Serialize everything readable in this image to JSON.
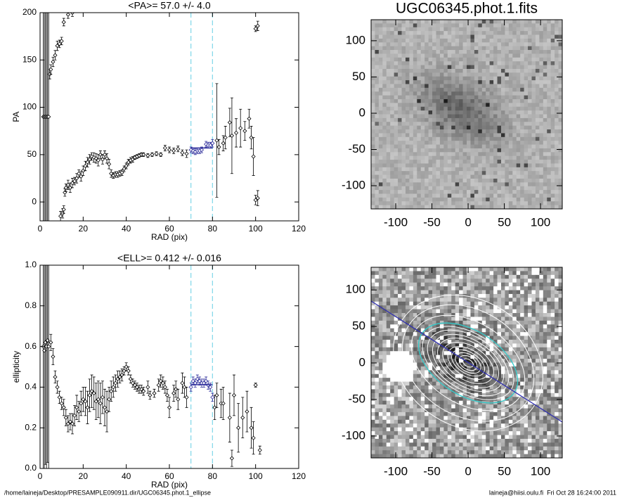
{
  "chart_data": [
    {
      "type": "errorbar",
      "title": "<PA>=  57.0 +/-   4.0",
      "x_label": "RAD (pix)",
      "y_label": "PA",
      "xlim": [
        0,
        120
      ],
      "ylim": [
        -20,
        200
      ],
      "xticks": [
        0,
        20,
        40,
        60,
        80,
        100,
        120
      ],
      "yticks": [
        0,
        50,
        100,
        150,
        200
      ],
      "markers_x": [
        70,
        80
      ],
      "markers_color": "#7fd8e8",
      "fit": {
        "x": [
          70,
          80
        ],
        "value": 57,
        "color": "#2b2b9a"
      },
      "series": [
        {
          "color": "#000000",
          "x": [
            1.5,
            2,
            2.5,
            3,
            3.5,
            4,
            4.5,
            5,
            6,
            7,
            8,
            9,
            10,
            11,
            13,
            15,
            9.5,
            10.5,
            11,
            11.5,
            12,
            13,
            14,
            15,
            16,
            17,
            18,
            19,
            20,
            21,
            22,
            23,
            24,
            25,
            26,
            27,
            28,
            29,
            30,
            31,
            32,
            33,
            34,
            35,
            36,
            37,
            38,
            39,
            40,
            41,
            42,
            43,
            44,
            45,
            46,
            47,
            48,
            50,
            52,
            54,
            56,
            58,
            60,
            62,
            64,
            66,
            68,
            82,
            83,
            85,
            86,
            88,
            89,
            91,
            93,
            95,
            97,
            98,
            99,
            100,
            101,
            100,
            101
          ],
          "values": [
            90,
            90,
            90,
            90,
            90,
            90,
            135,
            140,
            148,
            155,
            165,
            167,
            170,
            190,
            198,
            200,
            -15,
            -12,
            -8,
            10,
            15,
            18,
            15,
            20,
            22,
            25,
            30,
            27,
            33,
            38,
            42,
            45,
            48,
            47,
            46,
            44,
            50,
            45,
            50,
            46,
            40,
            30,
            28,
            29,
            29,
            30,
            31,
            35,
            38,
            42,
            44,
            45,
            47,
            48,
            49,
            50,
            50,
            49,
            50,
            51,
            50,
            57,
            55,
            54,
            56,
            52,
            51,
            65,
            58,
            62,
            68,
            84,
            70,
            73,
            78,
            75,
            88,
            68,
            48,
            2,
            4,
            183,
            186
          ],
          "errors": [
            130,
            130,
            130,
            130,
            130,
            130,
            5,
            5,
            5,
            5,
            5,
            4,
            4,
            4,
            4,
            4,
            5,
            5,
            4,
            4,
            4,
            5,
            5,
            5,
            4,
            5,
            4,
            5,
            5,
            5,
            5,
            5,
            4,
            5,
            5,
            6,
            4,
            5,
            4,
            5,
            5,
            4,
            3,
            3,
            3,
            3,
            3,
            3,
            3,
            3,
            3,
            3,
            2,
            2,
            2,
            2,
            2,
            2,
            2,
            2,
            2,
            3,
            3,
            3,
            3,
            3,
            4,
            60,
            8,
            8,
            12,
            15,
            40,
            15,
            20,
            10,
            10,
            12,
            20,
            5,
            8,
            3,
            5
          ]
        },
        {
          "color": "#2b2b9a",
          "x": [
            70,
            71,
            72,
            73,
            74,
            75,
            77,
            78,
            79,
            80
          ],
          "values": [
            55,
            54,
            53,
            54,
            54,
            55,
            61,
            60,
            60,
            62
          ],
          "errors": [
            3,
            3,
            3,
            3,
            3,
            3,
            3,
            3,
            3,
            4
          ]
        }
      ]
    },
    {
      "type": "errorbar",
      "title": "<ELL>= 0.412 +/-  0.016",
      "x_label": "RAD (pix)",
      "y_label": "ellipticity",
      "xlim": [
        0,
        120
      ],
      "ylim": [
        0,
        1
      ],
      "xticks": [
        0,
        20,
        40,
        60,
        80,
        100,
        120
      ],
      "yticks": [
        {
          "value": 0,
          "label": "0.0"
        },
        0.2,
        0.4,
        0.6,
        0.8,
        {
          "value": 1,
          "label": "1.0"
        }
      ],
      "markers_x": [
        70,
        80
      ],
      "markers_color": "#7fd8e8",
      "fit": {
        "x": [
          70,
          80
        ],
        "value": 0.412,
        "color": "#2b2b9a"
      },
      "series": [
        {
          "color": "#000000",
          "x": [
            1.5,
            2,
            2.5,
            3,
            3.5,
            4,
            5,
            6,
            7,
            8,
            9,
            10,
            11,
            12,
            13,
            14,
            15,
            16,
            17,
            18,
            19,
            20,
            21,
            22,
            23,
            24,
            25,
            26,
            27,
            28,
            29,
            30,
            31,
            32,
            33,
            34,
            35,
            36,
            37,
            38,
            39,
            40,
            41,
            42,
            43,
            44,
            45,
            46,
            47,
            48,
            50,
            51,
            53,
            55,
            56,
            57,
            58,
            59,
            60,
            62,
            63,
            64,
            66,
            67,
            68,
            81,
            82,
            84,
            85,
            88,
            89,
            90,
            92,
            94,
            96,
            98,
            99,
            100,
            102
          ],
          "values": [
            0.6,
            0.58,
            0.62,
            0.6,
            0.63,
            0.6,
            0.62,
            0.55,
            0.45,
            0.4,
            0.35,
            0.32,
            0.3,
            0.25,
            0.22,
            0.23,
            0.22,
            0.26,
            0.3,
            0.28,
            0.32,
            0.34,
            0.33,
            0.3,
            0.36,
            0.38,
            0.37,
            0.33,
            0.34,
            0.32,
            0.35,
            0.3,
            0.28,
            0.34,
            0.38,
            0.4,
            0.42,
            0.44,
            0.45,
            0.46,
            0.48,
            0.5,
            0.48,
            0.44,
            0.42,
            0.41,
            0.4,
            0.39,
            0.39,
            0.38,
            0.4,
            0.36,
            0.37,
            0.41,
            0.43,
            0.42,
            0.4,
            0.36,
            0.3,
            0.37,
            0.39,
            0.34,
            0.42,
            0.4,
            0.35,
            0.3,
            0.36,
            0.32,
            0.32,
            0.25,
            0.05,
            0.36,
            0.2,
            0.25,
            0.28,
            0.2,
            0.15,
            0.41,
            0.09
          ],
          "errors": [
            0.6,
            0.6,
            0.6,
            0.6,
            0.6,
            0.6,
            0.04,
            0.04,
            0.03,
            0.03,
            0.03,
            0.03,
            0.04,
            0.04,
            0.04,
            0.04,
            0.05,
            0.05,
            0.06,
            0.05,
            0.06,
            0.06,
            0.07,
            0.08,
            0.08,
            0.08,
            0.08,
            0.09,
            0.09,
            0.1,
            0.08,
            0.09,
            0.1,
            0.06,
            0.05,
            0.05,
            0.04,
            0.04,
            0.03,
            0.03,
            0.02,
            0.02,
            0.02,
            0.02,
            0.02,
            0.02,
            0.02,
            0.02,
            0.02,
            0.02,
            0.03,
            0.02,
            0.02,
            0.03,
            0.03,
            0.03,
            0.03,
            0.03,
            0.05,
            0.04,
            0.04,
            0.05,
            0.05,
            0.05,
            0.05,
            0.06,
            0.06,
            0.07,
            0.08,
            0.12,
            0.04,
            0.1,
            0.12,
            0.1,
            0.1,
            0.1,
            0.08,
            0.01,
            0.02
          ]
        },
        {
          "color": "#2b2b9a",
          "x": [
            70,
            71,
            72,
            73,
            74,
            75,
            76,
            77,
            78,
            79,
            80
          ],
          "values": [
            0.4,
            0.43,
            0.42,
            0.44,
            0.43,
            0.42,
            0.42,
            0.43,
            0.41,
            0.4,
            0.35
          ],
          "errors": [
            0.02,
            0.02,
            0.02,
            0.02,
            0.02,
            0.02,
            0.02,
            0.02,
            0.02,
            0.02,
            0.02
          ]
        }
      ]
    },
    {
      "type": "image",
      "title": "UGC06345.phot.1.fits",
      "xlim": [
        -134,
        130
      ],
      "ylim": [
        -132,
        129
      ],
      "xticks": [
        -100,
        -50,
        0,
        50,
        100
      ],
      "yticks": [
        -100,
        -50,
        0,
        50,
        100
      ]
    },
    {
      "type": "image",
      "xlim": [
        -134,
        130
      ],
      "ylim": [
        -130,
        131
      ],
      "xticks": [
        -100,
        -50,
        0,
        50,
        100
      ],
      "yticks": [
        -100,
        -50,
        0,
        50,
        100
      ]
    }
  ],
  "footer": {
    "path": "/home/laineja/Desktop/PRESAMPLE090911.dir/UGC06345.phot.1_ellipse",
    "stamp": "laineja@hiisi.oulu.fi  Fri Oct 28 16:24:00 2011"
  }
}
